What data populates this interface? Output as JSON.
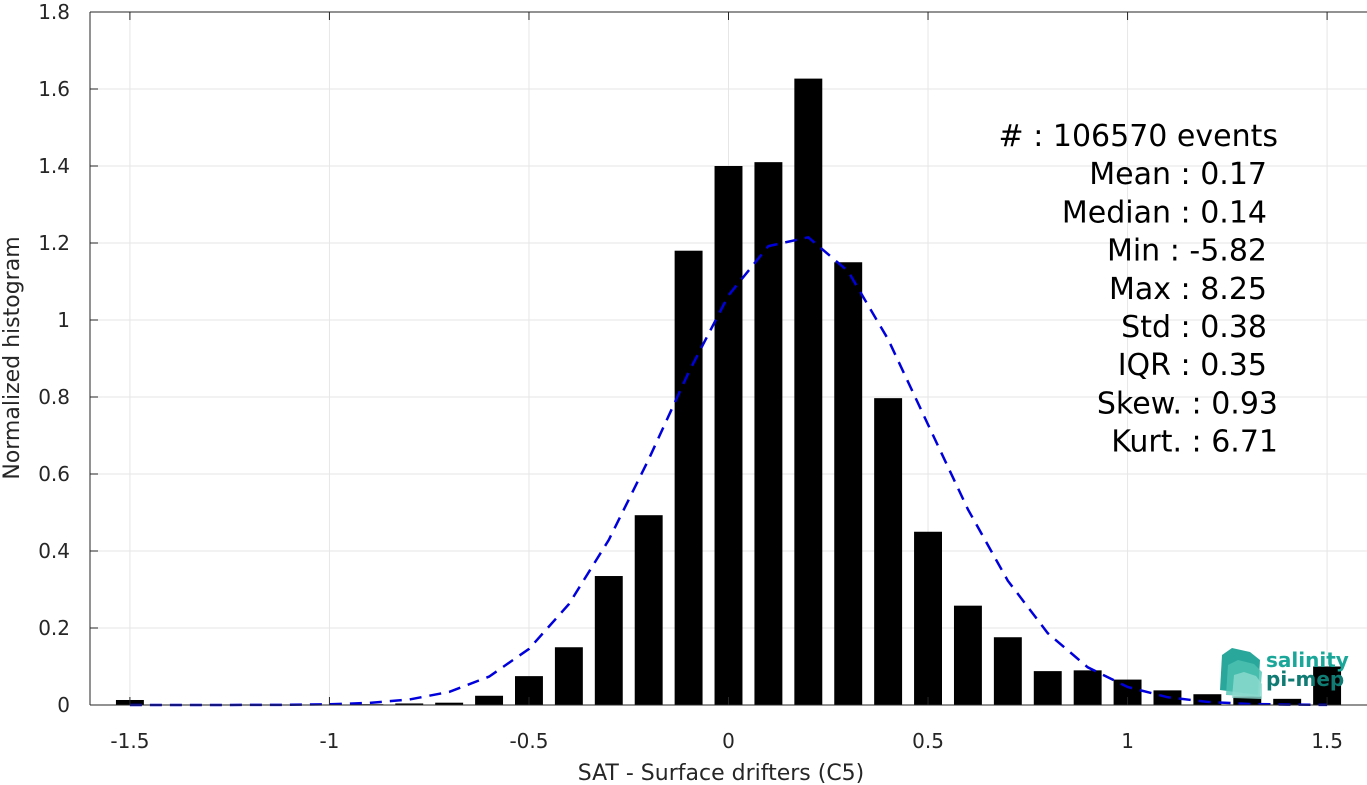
{
  "chart_data": {
    "type": "bar",
    "xlabel": "SAT - Surface drifters (C5)",
    "ylabel": "Normalized histogram",
    "xlim": [
      -1.6,
      1.6
    ],
    "ylim": [
      0,
      1.8
    ],
    "xticks": [
      -1.5,
      -1,
      -0.5,
      0,
      0.5,
      1,
      1.5
    ],
    "xtick_labels": [
      "-1.5",
      "-1",
      "-0.5",
      "0",
      "0.5",
      "1",
      "1.5"
    ],
    "yticks": [
      0,
      0.2,
      0.4,
      0.6,
      0.8,
      1,
      1.2,
      1.4,
      1.6,
      1.8
    ],
    "ytick_labels": [
      "0",
      "0.2",
      "0.4",
      "0.6",
      "0.8",
      "1",
      "1.2",
      "1.4",
      "1.6",
      "1.8"
    ],
    "grid": true,
    "bar_color": "#000000",
    "bar_width": 0.07,
    "series": [
      {
        "x": [
          -1.5,
          -1.4,
          -1.3,
          -1.2,
          -1.1,
          -1.0,
          -0.9,
          -0.8,
          -0.7,
          -0.6,
          -0.5,
          -0.4,
          -0.3,
          -0.2,
          -0.1,
          0.0,
          0.1,
          0.2,
          0.3,
          0.4,
          0.5,
          0.6,
          0.7,
          0.8,
          0.9,
          1.0,
          1.1,
          1.2,
          1.3,
          1.4,
          1.5
        ],
        "values": [
          0.013,
          0.001,
          0.001,
          0.001,
          0.001,
          0.001,
          0.002,
          0.004,
          0.006,
          0.024,
          0.075,
          0.15,
          0.335,
          0.493,
          1.18,
          1.4,
          1.41,
          1.627,
          1.15,
          0.797,
          0.45,
          0.258,
          0.176,
          0.088,
          0.09,
          0.066,
          0.038,
          0.028,
          0.022,
          0.016,
          0.1
        ]
      }
    ],
    "fit_curve": {
      "style": "dashed",
      "color": "#0000dd",
      "mean": 0.17,
      "std": 0.325,
      "peak": 1.22
    },
    "stats": [
      {
        "label": "#  : 106570 events"
      },
      {
        "label": "Mean : 0.17"
      },
      {
        "label": "Median : 0.14"
      },
      {
        "label": "Min : -5.82"
      },
      {
        "label": "Max : 8.25"
      },
      {
        "label": "Std : 0.38"
      },
      {
        "label": "IQR : 0.35"
      },
      {
        "label": "Skew. : 0.93"
      },
      {
        "label": "Kurt. : 6.71"
      }
    ]
  },
  "logo": {
    "line1": "salinity",
    "line2": "pi-mep",
    "color1": "#1aa79a",
    "color2": "#0f7b73"
  }
}
